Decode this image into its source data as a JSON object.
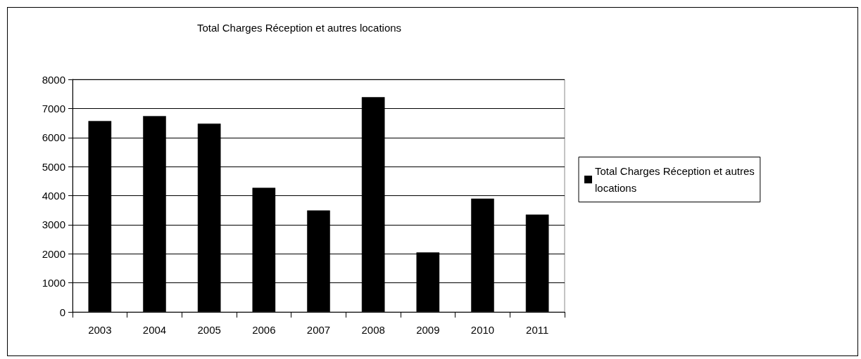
{
  "chart_data": {
    "type": "bar",
    "title": "Total Charges Réception et autres locations",
    "categories": [
      "2003",
      "2004",
      "2005",
      "2006",
      "2007",
      "2008",
      "2009",
      "2010",
      "2011"
    ],
    "series": [
      {
        "name": "Total Charges Réception et autres locations",
        "color": "#000000",
        "values": [
          6570,
          6740,
          6480,
          4270,
          3490,
          7390,
          2050,
          3900,
          3350
        ]
      }
    ],
    "ylim": [
      0,
      8000
    ],
    "yticks": [
      0,
      1000,
      2000,
      3000,
      4000,
      5000,
      6000,
      7000,
      8000
    ],
    "grid": "y",
    "legend": "right"
  }
}
